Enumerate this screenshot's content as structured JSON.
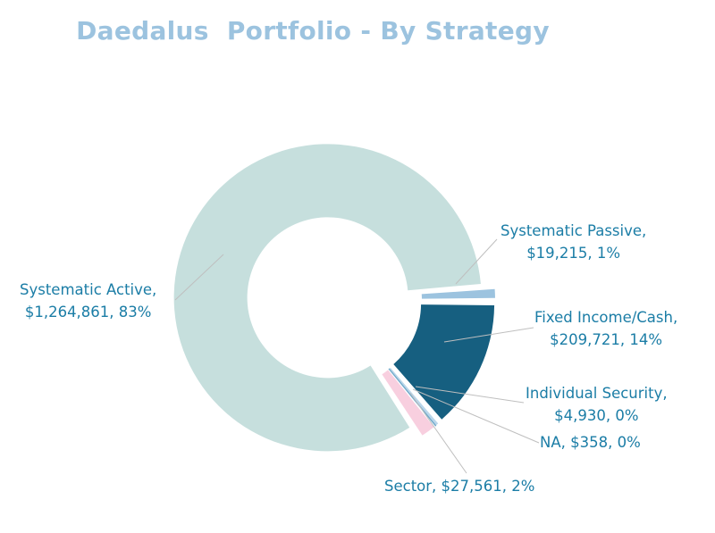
{
  "title": "Daedalus  Portfolio - By Strategy",
  "chart_data": {
    "type": "pie",
    "variant": "donut",
    "title": "Daedalus  Portfolio - By Strategy",
    "slices": [
      {
        "name": "Systematic Active",
        "value": 1264861,
        "percent": "83%",
        "color": "#c6dfdd",
        "label_line1": "Systematic Active,",
        "label_line2": "$1,264,861, 83%"
      },
      {
        "name": "Systematic Passive",
        "value": 19215,
        "percent": "1%",
        "color": "#9cc3df",
        "label_line1": "Systematic Passive,",
        "label_line2": "$19,215, 1%"
      },
      {
        "name": "Fixed Income/Cash",
        "value": 209721,
        "percent": "14%",
        "color": "#165f80",
        "label_line1": "Fixed Income/Cash,",
        "label_line2": "$209,721, 14%"
      },
      {
        "name": "Individual Security",
        "value": 4930,
        "percent": "0%",
        "color": "#b9d6ea",
        "label_line1": "Individual Security,",
        "label_line2": "$4,930, 0%"
      },
      {
        "name": "NA",
        "value": 358,
        "percent": "0%",
        "color": "#6fa8c9",
        "label_line1": "NA, $358, 0%",
        "label_line2": ""
      },
      {
        "name": "Sector",
        "value": 27561,
        "percent": "2%",
        "color": "#f8cfdf",
        "label_line1": "Sector, $27,561, 2%",
        "label_line2": ""
      }
    ],
    "legend": "none",
    "data_labels": "outside with leader lines"
  }
}
